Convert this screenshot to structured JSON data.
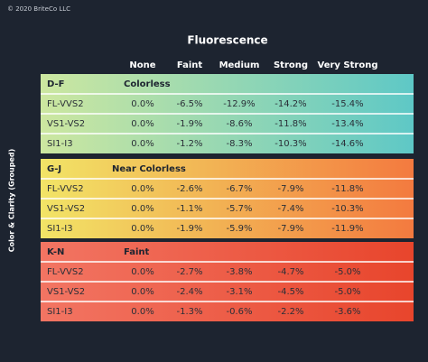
{
  "copyright": "© 2020 BriteCo LLC",
  "title": "Fluorescence",
  "row_axis_label": "Color & Clarity (Grouped)",
  "columns": [
    "None",
    "Faint",
    "Medium",
    "Strong",
    "Very Strong"
  ],
  "groups": [
    {
      "label": "D-F",
      "name": "Colorless",
      "rows": [
        [
          "FL-VVS2",
          "0.0%",
          "-6.5%",
          "-12.9%",
          "-14.2%",
          "-15.4%"
        ],
        [
          "VS1-VS2",
          "0.0%",
          "-1.9%",
          "-8.6%",
          "-11.8%",
          "-13.4%"
        ],
        [
          "SI1-I3",
          "0.0%",
          "-1.2%",
          "-8.3%",
          "-10.3%",
          "-14.6%"
        ]
      ]
    },
    {
      "label": "G-J",
      "name": "Near Colorless",
      "rows": [
        [
          "FL-VVS2",
          "0.0%",
          "-2.6%",
          "-6.7%",
          "-7.9%",
          "-11.8%"
        ],
        [
          "VS1-VS2",
          "0.0%",
          "-1.1%",
          "-5.7%",
          "-7.4%",
          "-10.3%"
        ],
        [
          "SI1-I3",
          "0.0%",
          "-1.9%",
          "-5.9%",
          "-7.9%",
          "-11.9%"
        ]
      ]
    },
    {
      "label": "K-N",
      "name": "Faint",
      "rows": [
        [
          "FL-VVS2",
          "0.0%",
          "-2.7%",
          "-3.8%",
          "-4.7%",
          "-5.0%"
        ],
        [
          "VS1-VS2",
          "0.0%",
          "-2.4%",
          "-3.1%",
          "-4.5%",
          "-5.0%"
        ],
        [
          "SI1-I3",
          "0.0%",
          "-1.3%",
          "-0.6%",
          "-2.2%",
          "-3.6%"
        ]
      ]
    }
  ]
}
